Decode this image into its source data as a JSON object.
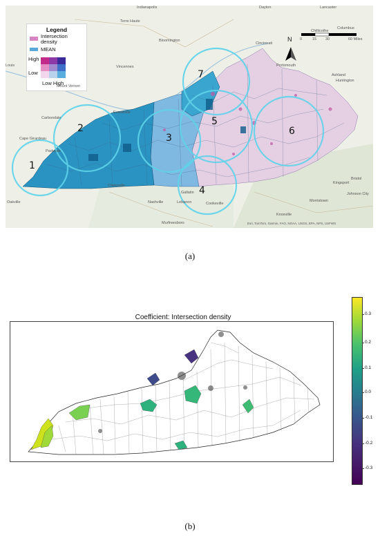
{
  "panel_a": {
    "legend": {
      "title": "Legend",
      "intersection_label": "Intersection density",
      "mean_label": "MEAN",
      "high": "High",
      "low": "Low",
      "low_high": "Low High"
    },
    "north": "N",
    "scale_ticks": [
      "0",
      "15",
      "30",
      "60 Miles"
    ],
    "region_numbers": [
      "1",
      "2",
      "3",
      "4",
      "5",
      "6",
      "7"
    ],
    "city_labels": {
      "indianapolis": "Indianapolis",
      "dayton": "Dayton",
      "cincinnati": "Cincinnati",
      "columbus": "Columbus",
      "bloomington": "Bloomington",
      "terre_haute": "Terre Haute",
      "evansville": "Evansville",
      "huntington": "Huntington",
      "ashland": "Ashland",
      "clarksville": "Clarksville",
      "nashville": "Nashville",
      "murfreesboro": "Murfreesboro",
      "knoxville": "Knoxville",
      "kingsport": "Kingsport",
      "johnson_city": "Johnson City",
      "lancaster": "Lancaster",
      "chillicothe": "Chillicothe",
      "portsmouth": "Portsmouth",
      "mount_vernon": "Mount Vernon",
      "vincennes": "Vincennes",
      "cookeville": "Cookeville",
      "lebanon": "Lebanon",
      "gallatin": "Gallatin",
      "morristown": "Morristown",
      "bristol": "Bristol",
      "paducah": "Paducah",
      "cape_girardeau": "Cape Girardeau",
      "carbondale": "Carbondale",
      "oakville": "Oakville",
      "louis": "Louis"
    },
    "attribution": "Esri, TomTom, Garmin, FAO, NOAA, USGS, EPA, NPS, USFWS",
    "caption": "(a)",
    "colors": {
      "mean": "#1f8fbf",
      "intersection": "#d684c4",
      "circle": "#5fd3ea"
    }
  },
  "panel_b": {
    "title": "Coefficient: Intersection density",
    "colorbar_ticks": [
      "0.3",
      "0.2",
      "0.1",
      "0.0",
      "-0.1",
      "-0.2",
      "-0.3"
    ],
    "caption": "(b)",
    "colormap": "viridis"
  }
}
